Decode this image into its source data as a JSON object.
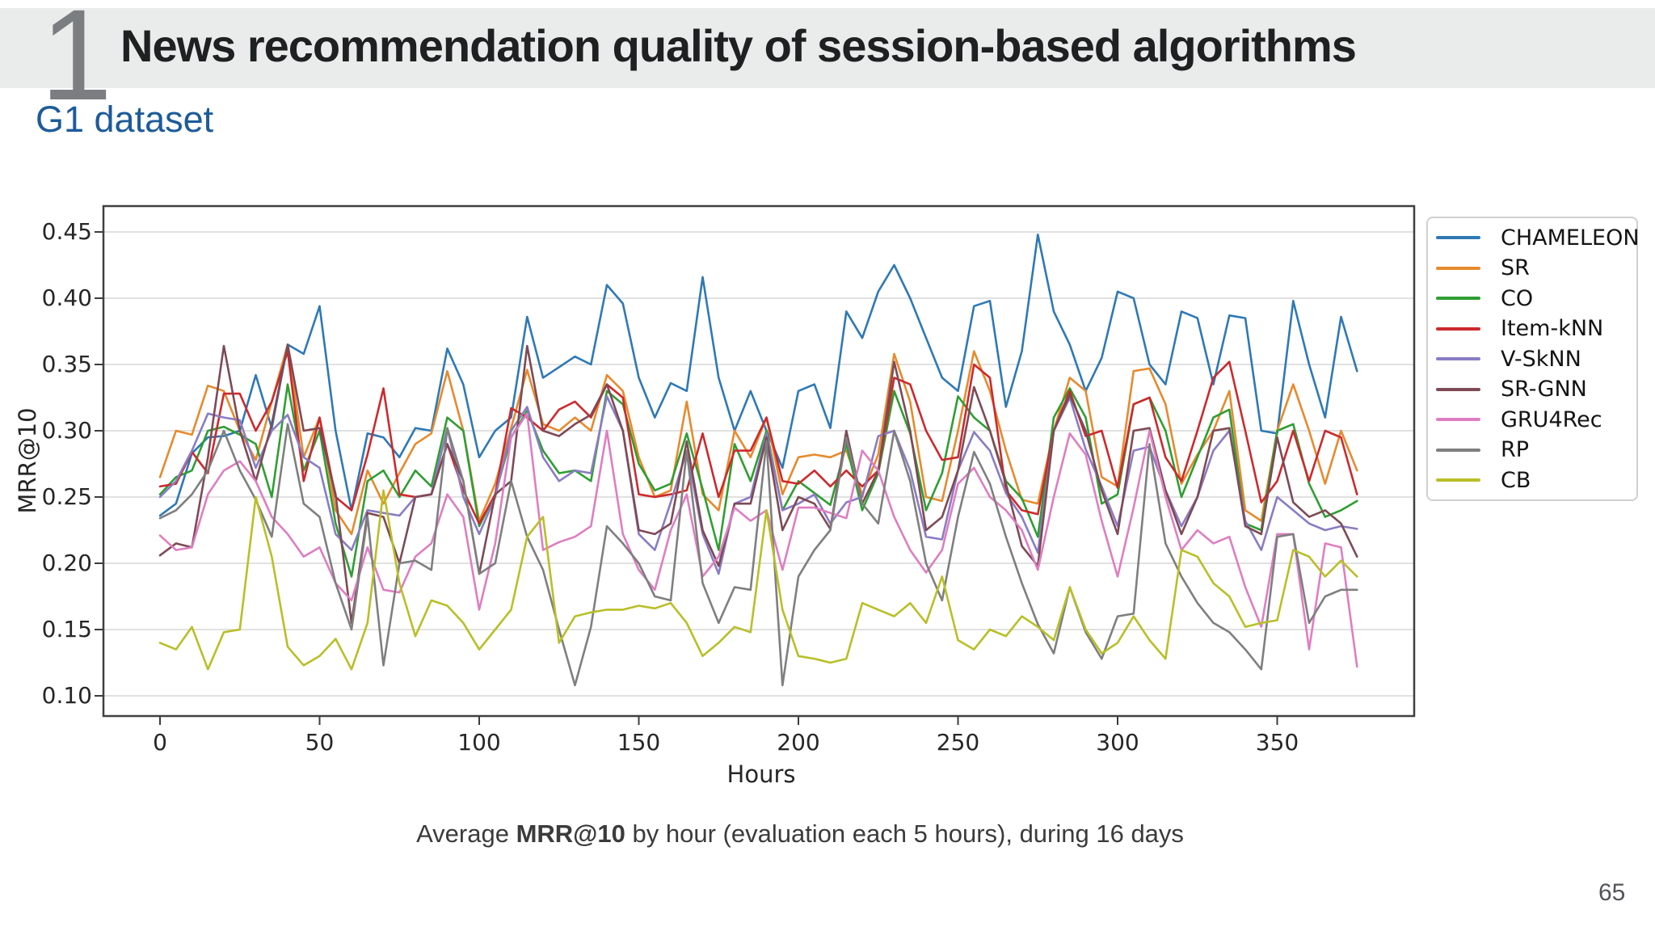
{
  "slide": {
    "badge_number": "1",
    "title": "News recommendation quality of session-based algorithms",
    "subtitle": "G1 dataset",
    "page_number": "65",
    "caption": {
      "prefix": "Average ",
      "bold": "MRR@10",
      "suffix": " by hour (evaluation each 5 hours), during 16 days"
    },
    "colors": {
      "band_bg": "#e9eceb",
      "badge": "#7b7e81",
      "subtitle": "#1d5b99"
    }
  },
  "chart_data": {
    "type": "line",
    "title": "",
    "xlabel": "Hours",
    "ylabel": "MRR@10",
    "x_start": 0,
    "x_step": 5,
    "x_end": 375,
    "xlim": [
      -18,
      392
    ],
    "ylim": [
      0.085,
      0.47
    ],
    "xticks": [
      0,
      50,
      100,
      150,
      200,
      250,
      300,
      350
    ],
    "yticks": [
      "0.10",
      "0.15",
      "0.20",
      "0.25",
      "0.30",
      "0.35",
      "0.40",
      "0.45"
    ],
    "grid": "horizontal",
    "legend_position": "right",
    "series": [
      {
        "name": "CHAMELEON",
        "color": "#2e79b5",
        "values": [
          0.236,
          0.245,
          0.283,
          0.295,
          0.296,
          0.3,
          0.342,
          0.302,
          0.365,
          0.358,
          0.394,
          0.3,
          0.24,
          0.298,
          0.295,
          0.28,
          0.302,
          0.3,
          0.362,
          0.335,
          0.28,
          0.3,
          0.31,
          0.386,
          0.34,
          0.348,
          0.356,
          0.35,
          0.41,
          0.396,
          0.34,
          0.31,
          0.336,
          0.33,
          0.416,
          0.34,
          0.3,
          0.33,
          0.3,
          0.272,
          0.33,
          0.335,
          0.302,
          0.39,
          0.37,
          0.405,
          0.425,
          0.4,
          0.37,
          0.34,
          0.33,
          0.394,
          0.398,
          0.318,
          0.36,
          0.448,
          0.39,
          0.365,
          0.33,
          0.355,
          0.405,
          0.4,
          0.35,
          0.335,
          0.39,
          0.385,
          0.335,
          0.387,
          0.385,
          0.3,
          0.298,
          0.398,
          0.35,
          0.31,
          0.386,
          0.345
        ]
      },
      {
        "name": "SR",
        "color": "#e68a2e",
        "values": [
          0.265,
          0.3,
          0.297,
          0.334,
          0.33,
          0.3,
          0.278,
          0.322,
          0.365,
          0.28,
          0.31,
          0.24,
          0.222,
          0.27,
          0.245,
          0.268,
          0.29,
          0.298,
          0.345,
          0.3,
          0.232,
          0.26,
          0.302,
          0.346,
          0.305,
          0.3,
          0.31,
          0.3,
          0.342,
          0.33,
          0.28,
          0.25,
          0.255,
          0.322,
          0.252,
          0.24,
          0.3,
          0.28,
          0.31,
          0.252,
          0.28,
          0.282,
          0.28,
          0.285,
          0.252,
          0.282,
          0.358,
          0.322,
          0.25,
          0.247,
          0.3,
          0.36,
          0.33,
          0.285,
          0.248,
          0.245,
          0.3,
          0.34,
          0.33,
          0.265,
          0.258,
          0.345,
          0.347,
          0.32,
          0.26,
          0.282,
          0.3,
          0.33,
          0.24,
          0.232,
          0.3,
          0.335,
          0.3,
          0.26,
          0.3,
          0.27
        ]
      },
      {
        "name": "CO",
        "color": "#2f9e33",
        "values": [
          0.252,
          0.265,
          0.27,
          0.3,
          0.303,
          0.297,
          0.29,
          0.25,
          0.335,
          0.27,
          0.3,
          0.23,
          0.19,
          0.262,
          0.27,
          0.25,
          0.27,
          0.258,
          0.31,
          0.3,
          0.228,
          0.252,
          0.295,
          0.315,
          0.285,
          0.268,
          0.27,
          0.262,
          0.33,
          0.32,
          0.275,
          0.255,
          0.26,
          0.298,
          0.256,
          0.21,
          0.29,
          0.262,
          0.3,
          0.24,
          0.262,
          0.253,
          0.244,
          0.29,
          0.24,
          0.268,
          0.33,
          0.298,
          0.24,
          0.268,
          0.326,
          0.31,
          0.3,
          0.262,
          0.249,
          0.22,
          0.31,
          0.332,
          0.31,
          0.245,
          0.252,
          0.32,
          0.325,
          0.3,
          0.25,
          0.28,
          0.31,
          0.316,
          0.23,
          0.225,
          0.3,
          0.305,
          0.26,
          0.235,
          0.24,
          0.247
        ]
      },
      {
        "name": "Item-kNN",
        "color": "#cc2a2d",
        "values": [
          0.258,
          0.26,
          0.284,
          0.268,
          0.328,
          0.328,
          0.3,
          0.322,
          0.36,
          0.262,
          0.31,
          0.25,
          0.24,
          0.282,
          0.332,
          0.252,
          0.25,
          0.252,
          0.29,
          0.255,
          0.23,
          0.252,
          0.317,
          0.31,
          0.3,
          0.316,
          0.322,
          0.31,
          0.335,
          0.325,
          0.252,
          0.25,
          0.252,
          0.255,
          0.298,
          0.25,
          0.285,
          0.285,
          0.31,
          0.262,
          0.26,
          0.27,
          0.258,
          0.27,
          0.258,
          0.27,
          0.34,
          0.335,
          0.3,
          0.278,
          0.28,
          0.35,
          0.34,
          0.255,
          0.24,
          0.237,
          0.3,
          0.33,
          0.296,
          0.3,
          0.257,
          0.32,
          0.325,
          0.28,
          0.262,
          0.3,
          0.34,
          0.352,
          0.3,
          0.246,
          0.262,
          0.3,
          0.262,
          0.3,
          0.295,
          0.252
        ]
      },
      {
        "name": "V-SkNN",
        "color": "#8a7cc4",
        "values": [
          0.25,
          0.262,
          0.285,
          0.313,
          0.31,
          0.308,
          0.272,
          0.3,
          0.312,
          0.28,
          0.272,
          0.222,
          0.21,
          0.24,
          0.238,
          0.236,
          0.25,
          0.252,
          0.302,
          0.25,
          0.222,
          0.25,
          0.3,
          0.318,
          0.28,
          0.262,
          0.27,
          0.268,
          0.326,
          0.3,
          0.222,
          0.21,
          0.246,
          0.285,
          0.222,
          0.192,
          0.245,
          0.25,
          0.298,
          0.24,
          0.245,
          0.252,
          0.23,
          0.246,
          0.25,
          0.296,
          0.3,
          0.27,
          0.22,
          0.218,
          0.27,
          0.299,
          0.285,
          0.253,
          0.235,
          0.208,
          0.3,
          0.325,
          0.286,
          0.258,
          0.228,
          0.285,
          0.288,
          0.255,
          0.228,
          0.25,
          0.285,
          0.3,
          0.232,
          0.21,
          0.25,
          0.24,
          0.23,
          0.225,
          0.228,
          0.226
        ]
      },
      {
        "name": "SR-GNN",
        "color": "#7e4a55",
        "values": [
          0.206,
          0.215,
          0.212,
          0.28,
          0.364,
          0.3,
          0.262,
          0.305,
          0.365,
          0.3,
          0.302,
          0.252,
          0.155,
          0.238,
          0.235,
          0.2,
          0.25,
          0.252,
          0.29,
          0.262,
          0.192,
          0.252,
          0.262,
          0.364,
          0.3,
          0.296,
          0.305,
          0.312,
          0.335,
          0.3,
          0.225,
          0.222,
          0.23,
          0.292,
          0.225,
          0.198,
          0.245,
          0.245,
          0.295,
          0.225,
          0.25,
          0.245,
          0.226,
          0.3,
          0.245,
          0.27,
          0.352,
          0.3,
          0.225,
          0.235,
          0.27,
          0.333,
          0.3,
          0.26,
          0.213,
          0.198,
          0.3,
          0.327,
          0.3,
          0.255,
          0.222,
          0.3,
          0.302,
          0.255,
          0.222,
          0.25,
          0.3,
          0.302,
          0.228,
          0.222,
          0.295,
          0.246,
          0.235,
          0.24,
          0.23,
          0.205
        ]
      },
      {
        "name": "GRU4Rec",
        "color": "#de7ec2",
        "values": [
          0.221,
          0.21,
          0.212,
          0.252,
          0.27,
          0.277,
          0.262,
          0.235,
          0.222,
          0.205,
          0.212,
          0.185,
          0.172,
          0.212,
          0.18,
          0.178,
          0.205,
          0.215,
          0.252,
          0.235,
          0.165,
          0.215,
          0.295,
          0.313,
          0.21,
          0.216,
          0.22,
          0.228,
          0.3,
          0.222,
          0.195,
          0.18,
          0.225,
          0.252,
          0.19,
          0.205,
          0.242,
          0.232,
          0.24,
          0.195,
          0.242,
          0.242,
          0.238,
          0.234,
          0.285,
          0.27,
          0.235,
          0.21,
          0.193,
          0.21,
          0.26,
          0.272,
          0.25,
          0.24,
          0.225,
          0.195,
          0.25,
          0.298,
          0.282,
          0.232,
          0.19,
          0.242,
          0.3,
          0.25,
          0.21,
          0.225,
          0.215,
          0.22,
          0.182,
          0.152,
          0.222,
          0.222,
          0.135,
          0.215,
          0.212,
          0.122
        ]
      },
      {
        "name": "RP",
        "color": "#7f7f7f",
        "values": [
          0.234,
          0.24,
          0.252,
          0.27,
          0.3,
          0.27,
          0.248,
          0.22,
          0.305,
          0.245,
          0.235,
          0.185,
          0.15,
          0.235,
          0.123,
          0.2,
          0.202,
          0.195,
          0.302,
          0.262,
          0.192,
          0.2,
          0.262,
          0.22,
          0.195,
          0.15,
          0.108,
          0.152,
          0.228,
          0.215,
          0.2,
          0.175,
          0.172,
          0.285,
          0.185,
          0.155,
          0.182,
          0.18,
          0.292,
          0.108,
          0.19,
          0.21,
          0.225,
          0.295,
          0.245,
          0.23,
          0.3,
          0.262,
          0.2,
          0.172,
          0.235,
          0.284,
          0.26,
          0.22,
          0.185,
          0.154,
          0.132,
          0.182,
          0.148,
          0.128,
          0.16,
          0.162,
          0.29,
          0.215,
          0.19,
          0.17,
          0.155,
          0.148,
          0.135,
          0.12,
          0.22,
          0.222,
          0.155,
          0.175,
          0.18,
          0.18
        ]
      },
      {
        "name": "CB",
        "color": "#b9bf27",
        "values": [
          0.14,
          0.135,
          0.152,
          0.12,
          0.148,
          0.15,
          0.25,
          0.205,
          0.137,
          0.123,
          0.13,
          0.143,
          0.12,
          0.155,
          0.255,
          0.185,
          0.145,
          0.172,
          0.168,
          0.155,
          0.135,
          0.15,
          0.165,
          0.22,
          0.235,
          0.14,
          0.16,
          0.163,
          0.165,
          0.165,
          0.168,
          0.166,
          0.17,
          0.155,
          0.13,
          0.14,
          0.152,
          0.148,
          0.24,
          0.165,
          0.13,
          0.128,
          0.125,
          0.128,
          0.17,
          0.165,
          0.16,
          0.17,
          0.155,
          0.19,
          0.142,
          0.135,
          0.15,
          0.145,
          0.16,
          0.152,
          0.142,
          0.182,
          0.15,
          0.132,
          0.14,
          0.16,
          0.142,
          0.128,
          0.21,
          0.205,
          0.185,
          0.175,
          0.152,
          0.155,
          0.157,
          0.21,
          0.205,
          0.19,
          0.202,
          0.19
        ]
      }
    ]
  }
}
